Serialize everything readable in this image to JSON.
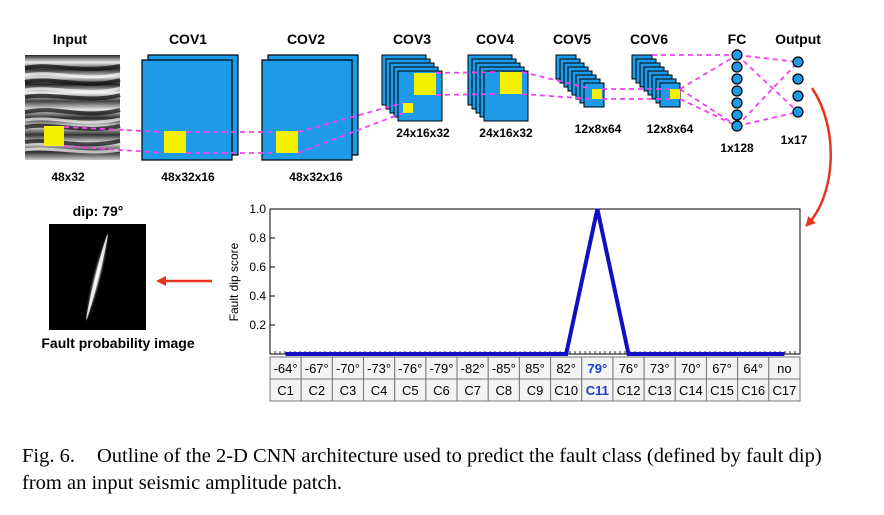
{
  "layers": {
    "input": {
      "name": "Input",
      "dim": "48x32"
    },
    "cov1": {
      "name": "COV1",
      "dim": "48x32x16"
    },
    "cov2": {
      "name": "COV2",
      "dim": "48x32x16"
    },
    "cov3": {
      "name": "COV3",
      "dim": "24x16x32"
    },
    "cov4": {
      "name": "COV4",
      "dim": "24x16x32"
    },
    "cov5": {
      "name": "COV5",
      "dim": "12x8x64"
    },
    "cov6": {
      "name": "COV6",
      "dim": "12x8x64"
    },
    "fc": {
      "name": "FC",
      "dim": "1x128"
    },
    "output": {
      "name": "Output",
      "dim": "1x17"
    }
  },
  "result": {
    "dip_label": "dip: 79°",
    "image_label": "Fault probability image"
  },
  "chart_data": {
    "type": "line",
    "ylabel": "Fault dip score",
    "ylim": [
      0,
      1.0
    ],
    "yticks": [
      "1.0",
      "0.8",
      "0.6",
      "0.4",
      "0.2"
    ],
    "categories": [
      "C1",
      "C2",
      "C3",
      "C4",
      "C5",
      "C6",
      "C7",
      "C8",
      "C9",
      "C10",
      "C11",
      "C12",
      "C13",
      "C14",
      "C15",
      "C16",
      "C17"
    ],
    "dips": [
      "-64°",
      "-67°",
      "-70°",
      "-73°",
      "-76°",
      "-79°",
      "-82°",
      "-85°",
      "85°",
      "82°",
      "79°",
      "76°",
      "73°",
      "70°",
      "67°",
      "64°",
      "no"
    ],
    "values": [
      0,
      0,
      0,
      0,
      0,
      0,
      0,
      0,
      0,
      0,
      1.0,
      0,
      0,
      0,
      0,
      0,
      0
    ],
    "highlight_index": 10,
    "colors": {
      "line": "#1010c0",
      "highlight": "#1a3fd6"
    }
  },
  "caption": {
    "fig_no": "Fig. 6.",
    "text": "Outline of the 2-D CNN architecture used to predict the fault class (defined by fault dip) from an input seismic amplitude patch."
  },
  "colors": {
    "block": "#1e9be8",
    "patch": "#f5f000",
    "connector": "#ee44ee",
    "arrow": "#e8341c"
  }
}
